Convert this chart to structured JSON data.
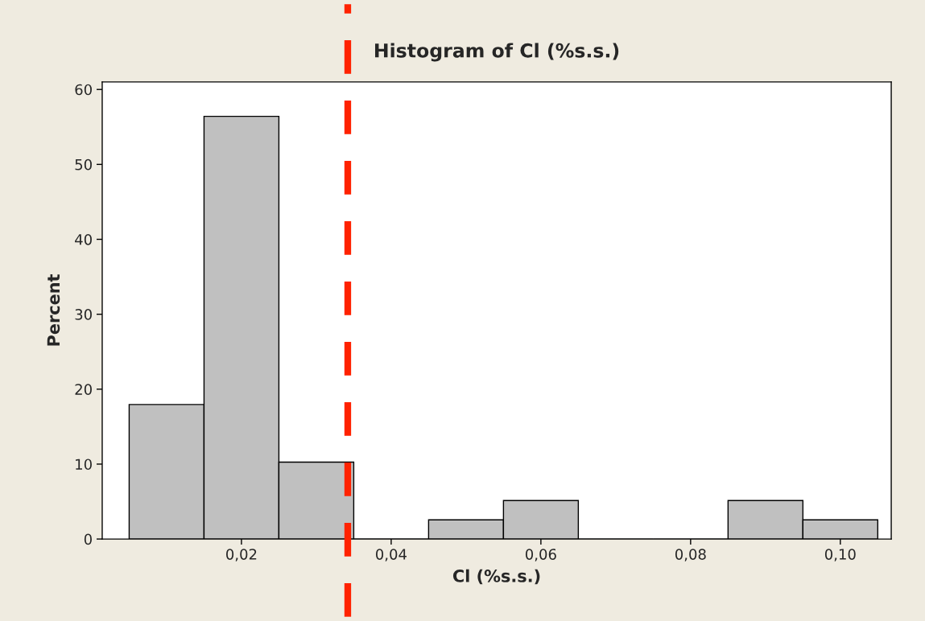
{
  "chart_data": {
    "type": "histogram",
    "title": "Histogram of Cl (%s.s.)",
    "xlabel": "Cl (%s.s.)",
    "ylabel": "Percent",
    "bins": [
      0.005,
      0.015,
      0.025,
      0.035,
      0.045,
      0.055,
      0.065,
      0.075,
      0.085,
      0.095,
      0.105
    ],
    "values": [
      17.95,
      56.41,
      10.26,
      0,
      2.56,
      5.13,
      0,
      0,
      5.13,
      2.56
    ],
    "color": "#c0c0c0",
    "xlim": [
      0.0014,
      0.1068
    ],
    "ylim": [
      0,
      61
    ],
    "xticks": [
      {
        "value": 0.02,
        "label": "0,02"
      },
      {
        "value": 0.04,
        "label": "0,04"
      },
      {
        "value": 0.06,
        "label": "0,06"
      },
      {
        "value": 0.08,
        "label": "0,08"
      },
      {
        "value": 0.1,
        "label": "0,10"
      }
    ],
    "yticks": [
      0,
      10,
      20,
      30,
      40,
      50,
      60
    ],
    "ref_lines": [
      {
        "axis": "x",
        "value": 0.0342,
        "color": "#ff2200",
        "line_style": "dashed"
      }
    ],
    "grid": false,
    "legend": false
  }
}
